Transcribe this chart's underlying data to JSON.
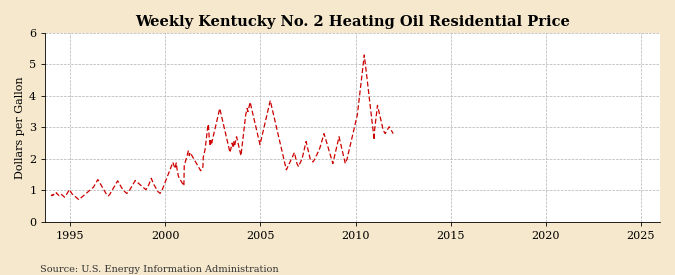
{
  "title": "Weekly Kentucky No. 2 Heating Oil Residential Price",
  "ylabel": "Dollars per Gallon",
  "source": "Source: U.S. Energy Information Administration",
  "background_color": "#f5e8cc",
  "plot_bg_color": "#ffffff",
  "line_color": "#cc0000",
  "xlim": [
    1993.7,
    2026.0
  ],
  "ylim": [
    0,
    6
  ],
  "yticks": [
    0,
    1,
    2,
    3,
    4,
    5,
    6
  ],
  "xticks": [
    1995,
    2000,
    2005,
    2010,
    2015,
    2020,
    2025
  ],
  "start_year": 1994.0,
  "freq_per_year": 52,
  "prices": [
    0.82,
    0.83,
    0.85,
    0.84,
    0.83,
    0.85,
    0.87,
    0.86,
    0.85,
    0.84,
    0.86,
    0.88,
    0.89,
    0.9,
    0.91,
    0.92,
    0.9,
    0.88,
    0.87,
    0.86,
    0.85,
    0.84,
    0.83,
    0.84,
    0.85,
    0.86,
    0.87,
    0.88,
    0.87,
    0.86,
    0.85,
    0.84,
    0.83,
    0.82,
    0.81,
    0.8,
    0.79,
    0.78,
    0.79,
    0.8,
    0.82,
    0.84,
    0.86,
    0.88,
    0.9,
    0.92,
    0.94,
    0.96,
    0.98,
    1.0,
    1.01,
    1.02,
    0.99,
    0.97,
    0.95,
    0.93,
    0.91,
    0.89,
    0.88,
    0.87,
    0.86,
    0.85,
    0.84,
    0.83,
    0.82,
    0.81,
    0.8,
    0.79,
    0.78,
    0.77,
    0.76,
    0.75,
    0.74,
    0.73,
    0.72,
    0.71,
    0.7,
    0.71,
    0.72,
    0.73,
    0.74,
    0.75,
    0.76,
    0.77,
    0.78,
    0.79,
    0.8,
    0.81,
    0.82,
    0.83,
    0.84,
    0.85,
    0.86,
    0.87,
    0.88,
    0.89,
    0.9,
    0.91,
    0.92,
    0.93,
    0.94,
    0.95,
    0.96,
    0.97,
    0.98,
    0.99,
    1.0,
    1.01,
    1.02,
    1.03,
    1.04,
    1.05,
    1.06,
    1.07,
    1.08,
    1.09,
    1.1,
    1.12,
    1.14,
    1.16,
    1.18,
    1.2,
    1.22,
    1.24,
    1.26,
    1.28,
    1.3,
    1.32,
    1.34,
    1.32,
    1.3,
    1.28,
    1.26,
    1.24,
    1.22,
    1.2,
    1.18,
    1.16,
    1.14,
    1.12,
    1.1,
    1.08,
    1.06,
    1.04,
    1.02,
    1.0,
    0.98,
    0.96,
    0.94,
    0.92,
    0.9,
    0.88,
    0.86,
    0.85,
    0.84,
    0.83,
    0.82,
    0.83,
    0.84,
    0.85,
    0.86,
    0.88,
    0.9,
    0.92,
    0.94,
    0.96,
    0.98,
    1.0,
    1.02,
    1.04,
    1.06,
    1.08,
    1.1,
    1.12,
    1.14,
    1.16,
    1.18,
    1.2,
    1.22,
    1.24,
    1.26,
    1.28,
    1.3,
    1.28,
    1.26,
    1.24,
    1.22,
    1.2,
    1.18,
    1.16,
    1.14,
    1.12,
    1.1,
    1.08,
    1.06,
    1.04,
    1.02,
    1.0,
    0.99,
    0.98,
    0.97,
    0.96,
    0.95,
    0.94,
    0.93,
    0.92,
    0.91,
    0.9,
    0.91,
    0.92,
    0.93,
    0.94,
    0.95,
    0.97,
    0.99,
    1.01,
    1.03,
    1.05,
    1.07,
    1.09,
    1.11,
    1.13,
    1.15,
    1.17,
    1.19,
    1.21,
    1.23,
    1.25,
    1.27,
    1.29,
    1.31,
    1.3,
    1.29,
    1.28,
    1.27,
    1.26,
    1.25,
    1.24,
    1.23,
    1.22,
    1.21,
    1.2,
    1.19,
    1.18,
    1.17,
    1.16,
    1.15,
    1.14,
    1.13,
    1.12,
    1.11,
    1.1,
    1.09,
    1.08,
    1.07,
    1.06,
    1.05,
    1.04,
    1.03,
    1.02,
    1.03,
    1.05,
    1.07,
    1.09,
    1.11,
    1.13,
    1.15,
    1.17,
    1.2,
    1.23,
    1.26,
    1.29,
    1.32,
    1.35,
    1.38,
    1.35,
    1.32,
    1.29,
    1.26,
    1.23,
    1.2,
    1.18,
    1.16,
    1.14,
    1.12,
    1.1,
    1.08,
    1.06,
    1.04,
    1.02,
    1.0,
    0.98,
    0.96,
    0.95,
    0.94,
    0.93,
    0.92,
    0.91,
    0.9,
    0.92,
    0.94,
    0.96,
    0.98,
    1.0,
    1.02,
    1.05,
    1.08,
    1.11,
    1.14,
    1.17,
    1.2,
    1.23,
    1.26,
    1.29,
    1.32,
    1.35,
    1.38,
    1.41,
    1.44,
    1.47,
    1.5,
    1.53,
    1.56,
    1.59,
    1.62,
    1.65,
    1.68,
    1.71,
    1.74,
    1.77,
    1.8,
    1.83,
    1.86,
    1.89,
    1.85,
    1.81,
    1.78,
    1.75,
    1.72,
    1.69,
    1.75,
    1.81,
    1.87,
    1.78,
    1.7,
    1.63,
    1.57,
    1.51,
    1.45,
    1.42,
    1.4,
    1.38,
    1.36,
    1.34,
    1.32,
    1.3,
    1.28,
    1.26,
    1.24,
    1.22,
    1.2,
    1.18,
    1.16,
    1.14,
    1.78,
    1.82,
    1.86,
    1.9,
    1.94,
    1.98,
    2.02,
    2.06,
    2.1,
    2.15,
    2.2,
    2.25,
    2.2,
    2.15,
    2.1,
    2.15,
    2.2,
    2.18,
    2.16,
    2.14,
    2.12,
    2.1,
    2.08,
    2.06,
    2.04,
    2.02,
    2.0,
    1.98,
    1.96,
    1.94,
    1.92,
    1.9,
    1.88,
    1.86,
    1.84,
    1.82,
    1.8,
    1.78,
    1.76,
    1.74,
    1.72,
    1.7,
    1.68,
    1.66,
    1.64,
    1.62,
    1.64,
    1.66,
    1.68,
    1.7,
    1.72,
    1.74,
    2.05,
    2.1,
    2.15,
    2.2,
    2.25,
    2.3,
    2.4,
    2.5,
    2.6,
    2.7,
    2.8,
    2.9,
    3.0,
    3.05,
    3.1,
    2.9,
    2.7,
    2.6,
    2.5,
    2.4,
    2.5,
    2.6,
    2.55,
    2.5,
    2.55,
    2.6,
    2.65,
    2.7,
    2.75,
    2.8,
    2.85,
    2.9,
    2.95,
    3.0,
    3.05,
    3.1,
    3.15,
    3.2,
    3.25,
    3.3,
    3.35,
    3.4,
    3.45,
    3.5,
    3.55,
    3.6,
    3.55,
    3.5,
    3.45,
    3.4,
    3.35,
    3.3,
    3.25,
    3.2,
    3.15,
    3.1,
    3.05,
    3.0,
    2.95,
    2.9,
    2.85,
    2.8,
    2.75,
    2.7,
    2.65,
    2.6,
    2.55,
    2.5,
    2.45,
    2.4,
    2.35,
    2.3,
    2.25,
    2.2,
    2.25,
    2.3,
    2.35,
    2.4,
    2.45,
    2.5,
    2.45,
    2.4,
    2.35,
    2.45,
    2.55,
    2.5,
    2.45,
    2.5,
    2.55,
    2.6,
    2.65,
    2.7,
    2.65,
    2.6,
    2.55,
    2.5,
    2.45,
    2.4,
    2.35,
    2.3,
    2.25,
    2.2,
    2.15,
    2.1,
    2.2,
    2.3,
    2.4,
    2.5,
    2.6,
    2.7,
    2.8,
    2.9,
    3.0,
    3.1,
    3.2,
    3.3,
    3.4,
    3.45,
    3.5,
    3.55,
    3.6,
    3.55,
    3.5,
    3.55,
    3.6,
    3.65,
    3.7,
    3.75,
    3.8,
    3.75,
    3.7,
    3.65,
    3.6,
    3.55,
    3.5,
    3.45,
    3.4,
    3.35,
    3.3,
    3.25,
    3.2,
    3.15,
    3.1,
    3.05,
    3.0,
    2.95,
    2.9,
    2.85,
    2.8,
    2.75,
    2.7,
    2.65,
    2.6,
    2.55,
    2.5,
    2.45,
    2.5,
    2.55,
    2.6,
    2.65,
    2.7,
    2.75,
    2.8,
    2.85,
    2.9,
    2.95,
    3.0,
    3.05,
    3.1,
    3.15,
    3.2,
    3.25,
    3.3,
    3.35,
    3.4,
    3.45,
    3.5,
    3.55,
    3.6,
    3.65,
    3.7,
    3.75,
    3.8,
    3.85,
    3.8,
    3.75,
    3.7,
    3.65,
    3.6,
    3.55,
    3.5,
    3.45,
    3.4,
    3.35,
    3.3,
    3.25,
    3.2,
    3.15,
    3.1,
    3.05,
    3.0,
    2.95,
    2.9,
    2.85,
    2.8,
    2.75,
    2.7,
    2.65,
    2.6,
    2.55,
    2.5,
    2.45,
    2.4,
    2.35,
    2.3,
    2.25,
    2.2,
    2.15,
    2.1,
    2.05,
    2.0,
    1.95,
    1.9,
    1.85,
    1.8,
    1.75,
    1.7,
    1.65,
    1.67,
    1.7,
    1.72,
    1.75,
    1.77,
    1.8,
    1.82,
    1.85,
    1.87,
    1.9,
    1.92,
    1.95,
    1.97,
    2.0,
    2.02,
    2.05,
    2.07,
    2.1,
    2.12,
    2.15,
    2.17,
    2.2,
    2.15,
    2.1,
    2.05,
    2.0,
    1.95,
    1.9,
    1.85,
    1.82,
    1.8,
    1.78,
    1.75,
    1.78,
    1.8,
    1.83,
    1.85,
    1.88,
    1.9,
    1.93,
    1.95,
    1.98,
    2.0,
    2.05,
    2.1,
    2.15,
    2.2,
    2.25,
    2.3,
    2.35,
    2.4,
    2.45,
    2.5,
    2.55,
    2.5,
    2.45,
    2.4,
    2.35,
    2.3,
    2.25,
    2.2,
    2.15,
    2.1,
    2.05,
    2.0,
    1.98,
    1.96,
    1.95,
    1.94,
    1.93,
    1.92,
    1.91,
    1.9,
    1.92,
    1.94,
    1.96,
    1.98,
    2.0,
    2.02,
    2.05,
    2.08,
    2.1,
    2.12,
    2.15,
    2.18,
    2.2,
    2.22,
    2.25,
    2.28,
    2.3,
    2.33,
    2.36,
    2.4,
    2.44,
    2.48,
    2.52,
    2.56,
    2.6,
    2.64,
    2.68,
    2.72,
    2.76,
    2.8,
    2.76,
    2.72,
    2.68,
    2.64,
    2.6,
    2.56,
    2.52,
    2.48,
    2.44,
    2.4,
    2.36,
    2.32,
    2.28,
    2.24,
    2.2,
    2.16,
    2.12,
    2.08,
    2.04,
    2.0,
    1.96,
    1.92,
    1.88,
    1.85,
    1.9,
    1.95,
    2.0,
    2.05,
    2.1,
    2.15,
    2.2,
    2.25,
    2.3,
    2.35,
    2.4,
    2.45,
    2.5,
    2.55,
    2.6,
    2.65,
    2.7,
    2.65,
    2.6,
    2.55,
    2.5,
    2.45,
    2.4,
    2.35,
    2.3,
    2.25,
    2.2,
    2.15,
    2.1,
    2.05,
    2.0,
    1.95,
    1.9,
    1.85,
    1.88,
    1.91,
    1.94,
    1.97,
    2.0,
    2.05,
    2.1,
    2.15,
    2.2,
    2.25,
    2.3,
    2.35,
    2.4,
    2.45,
    2.5,
    2.55,
    2.6,
    2.65,
    2.7,
    2.75,
    2.8,
    2.85,
    2.9,
    2.95,
    3.0,
    3.05,
    3.1,
    3.15,
    3.2,
    3.25,
    3.3,
    3.35,
    3.4,
    3.5,
    3.6,
    3.7,
    3.8,
    3.9,
    4.0,
    4.1,
    4.2,
    4.3,
    4.4,
    4.5,
    4.6,
    4.7,
    4.8,
    4.9,
    5.0,
    5.1,
    5.2,
    5.3,
    5.2,
    5.1,
    5.0,
    4.9,
    4.8,
    4.7,
    4.6,
    4.5,
    4.4,
    4.3,
    4.2,
    4.1,
    4.0,
    3.9,
    3.8,
    3.7,
    3.6,
    3.5,
    3.4,
    3.3,
    3.2,
    3.1,
    3.0,
    2.9,
    2.8,
    2.7,
    2.6,
    2.9,
    3.0,
    3.1,
    3.2,
    3.3,
    3.4,
    3.5,
    3.6,
    3.7,
    3.65,
    3.6,
    3.55,
    3.5,
    3.45,
    3.4,
    3.35,
    3.3,
    3.25,
    3.2,
    3.15,
    3.1,
    3.05,
    3.0,
    2.95,
    2.9,
    2.88,
    2.86,
    2.84,
    2.82,
    2.8,
    2.82,
    2.84,
    2.86,
    2.88,
    2.9,
    2.92,
    2.94,
    2.96,
    2.98,
    3.0,
    3.02,
    3.0,
    2.98,
    2.96,
    2.94,
    2.92,
    2.9,
    2.88,
    2.86,
    2.84,
    2.82,
    2.8
  ]
}
